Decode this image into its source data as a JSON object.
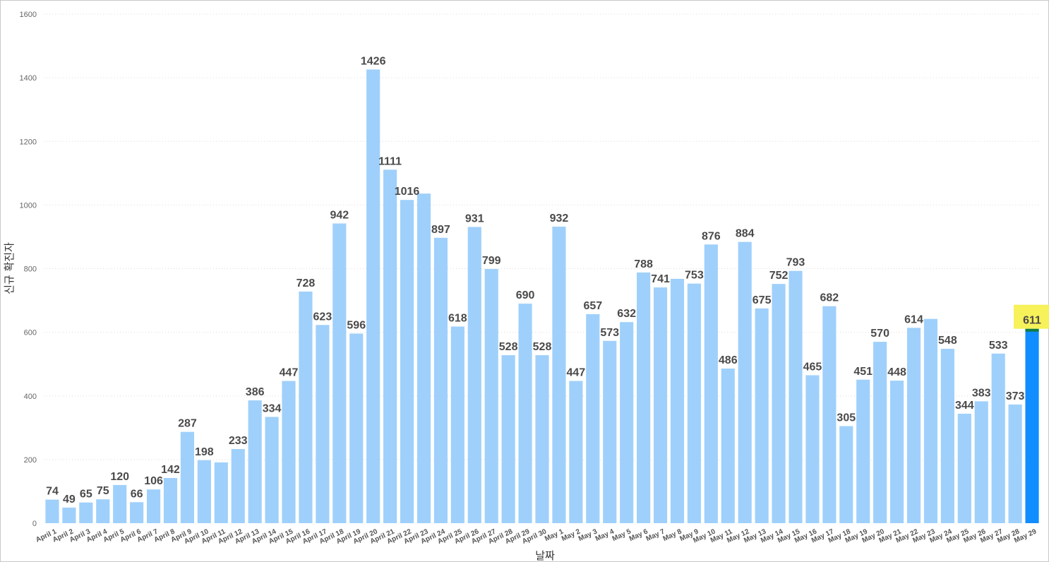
{
  "chart_data": {
    "type": "bar",
    "xlabel": "날짜",
    "ylabel": "신규 확진자",
    "ylim": [
      0,
      1600
    ],
    "yticks": [
      0,
      200,
      400,
      600,
      800,
      1000,
      1200,
      1400,
      1600
    ],
    "grid": true,
    "highlight_label": "611",
    "colors": {
      "bar": "#9fd0fb",
      "highlight": "#118dff",
      "highlight_top": "#0f7b3f",
      "callout": "#f7f15a",
      "label": "#4a4a4a",
      "grid": "#dddddd"
    },
    "categories": [
      "April 1",
      "April 2",
      "April 3",
      "April 4",
      "April 5",
      "April 6",
      "April 7",
      "April 8",
      "April 9",
      "April 10",
      "April 11",
      "April 12",
      "April 13",
      "April 14",
      "April 15",
      "April 16",
      "April 17",
      "April 18",
      "April 19",
      "April 20",
      "April 21",
      "April 22",
      "April 23",
      "April 24",
      "April 25",
      "April 26",
      "April 27",
      "April 28",
      "April 29",
      "April 30",
      "May 1",
      "May 2",
      "May 3",
      "May 4",
      "May 5",
      "May 6",
      "May 7",
      "May 8",
      "May 9",
      "May 10",
      "May 11",
      "May 12",
      "May 13",
      "May 14",
      "May 15",
      "May 16",
      "May 17",
      "May 18",
      "May 19",
      "May 20",
      "May 21",
      "May 22",
      "May 23",
      "May 24",
      "May 25",
      "May 26",
      "May 27",
      "May 28",
      "May 29"
    ],
    "values": [
      74,
      49,
      65,
      75,
      120,
      66,
      106,
      142,
      287,
      198,
      191,
      233,
      386,
      334,
      447,
      728,
      623,
      942,
      596,
      1426,
      1111,
      1016,
      1036,
      897,
      618,
      931,
      799,
      528,
      690,
      528,
      932,
      447,
      657,
      573,
      632,
      788,
      741,
      768,
      753,
      876,
      486,
      884,
      675,
      752,
      793,
      465,
      682,
      305,
      451,
      570,
      448,
      614,
      642,
      548,
      344,
      383,
      533,
      373,
      611
    ],
    "labels": [
      "74",
      "49",
      "65",
      "75",
      "120",
      "66",
      "106",
      "142",
      "287",
      "198",
      "",
      "233",
      "386",
      "334",
      "447",
      "728",
      "623",
      "942",
      "596",
      "1426",
      "1111",
      "1016",
      "",
      "897",
      "618",
      "931",
      "799",
      "528",
      "690",
      "528",
      "932",
      "447",
      "657",
      "573",
      "632",
      "788",
      "741",
      "",
      "753",
      "876",
      "486",
      "884",
      "675",
      "752",
      "793",
      "465",
      "682",
      "305",
      "451",
      "570",
      "448",
      "614",
      "",
      "548",
      "344",
      "383",
      "533",
      "373",
      "611"
    ]
  }
}
